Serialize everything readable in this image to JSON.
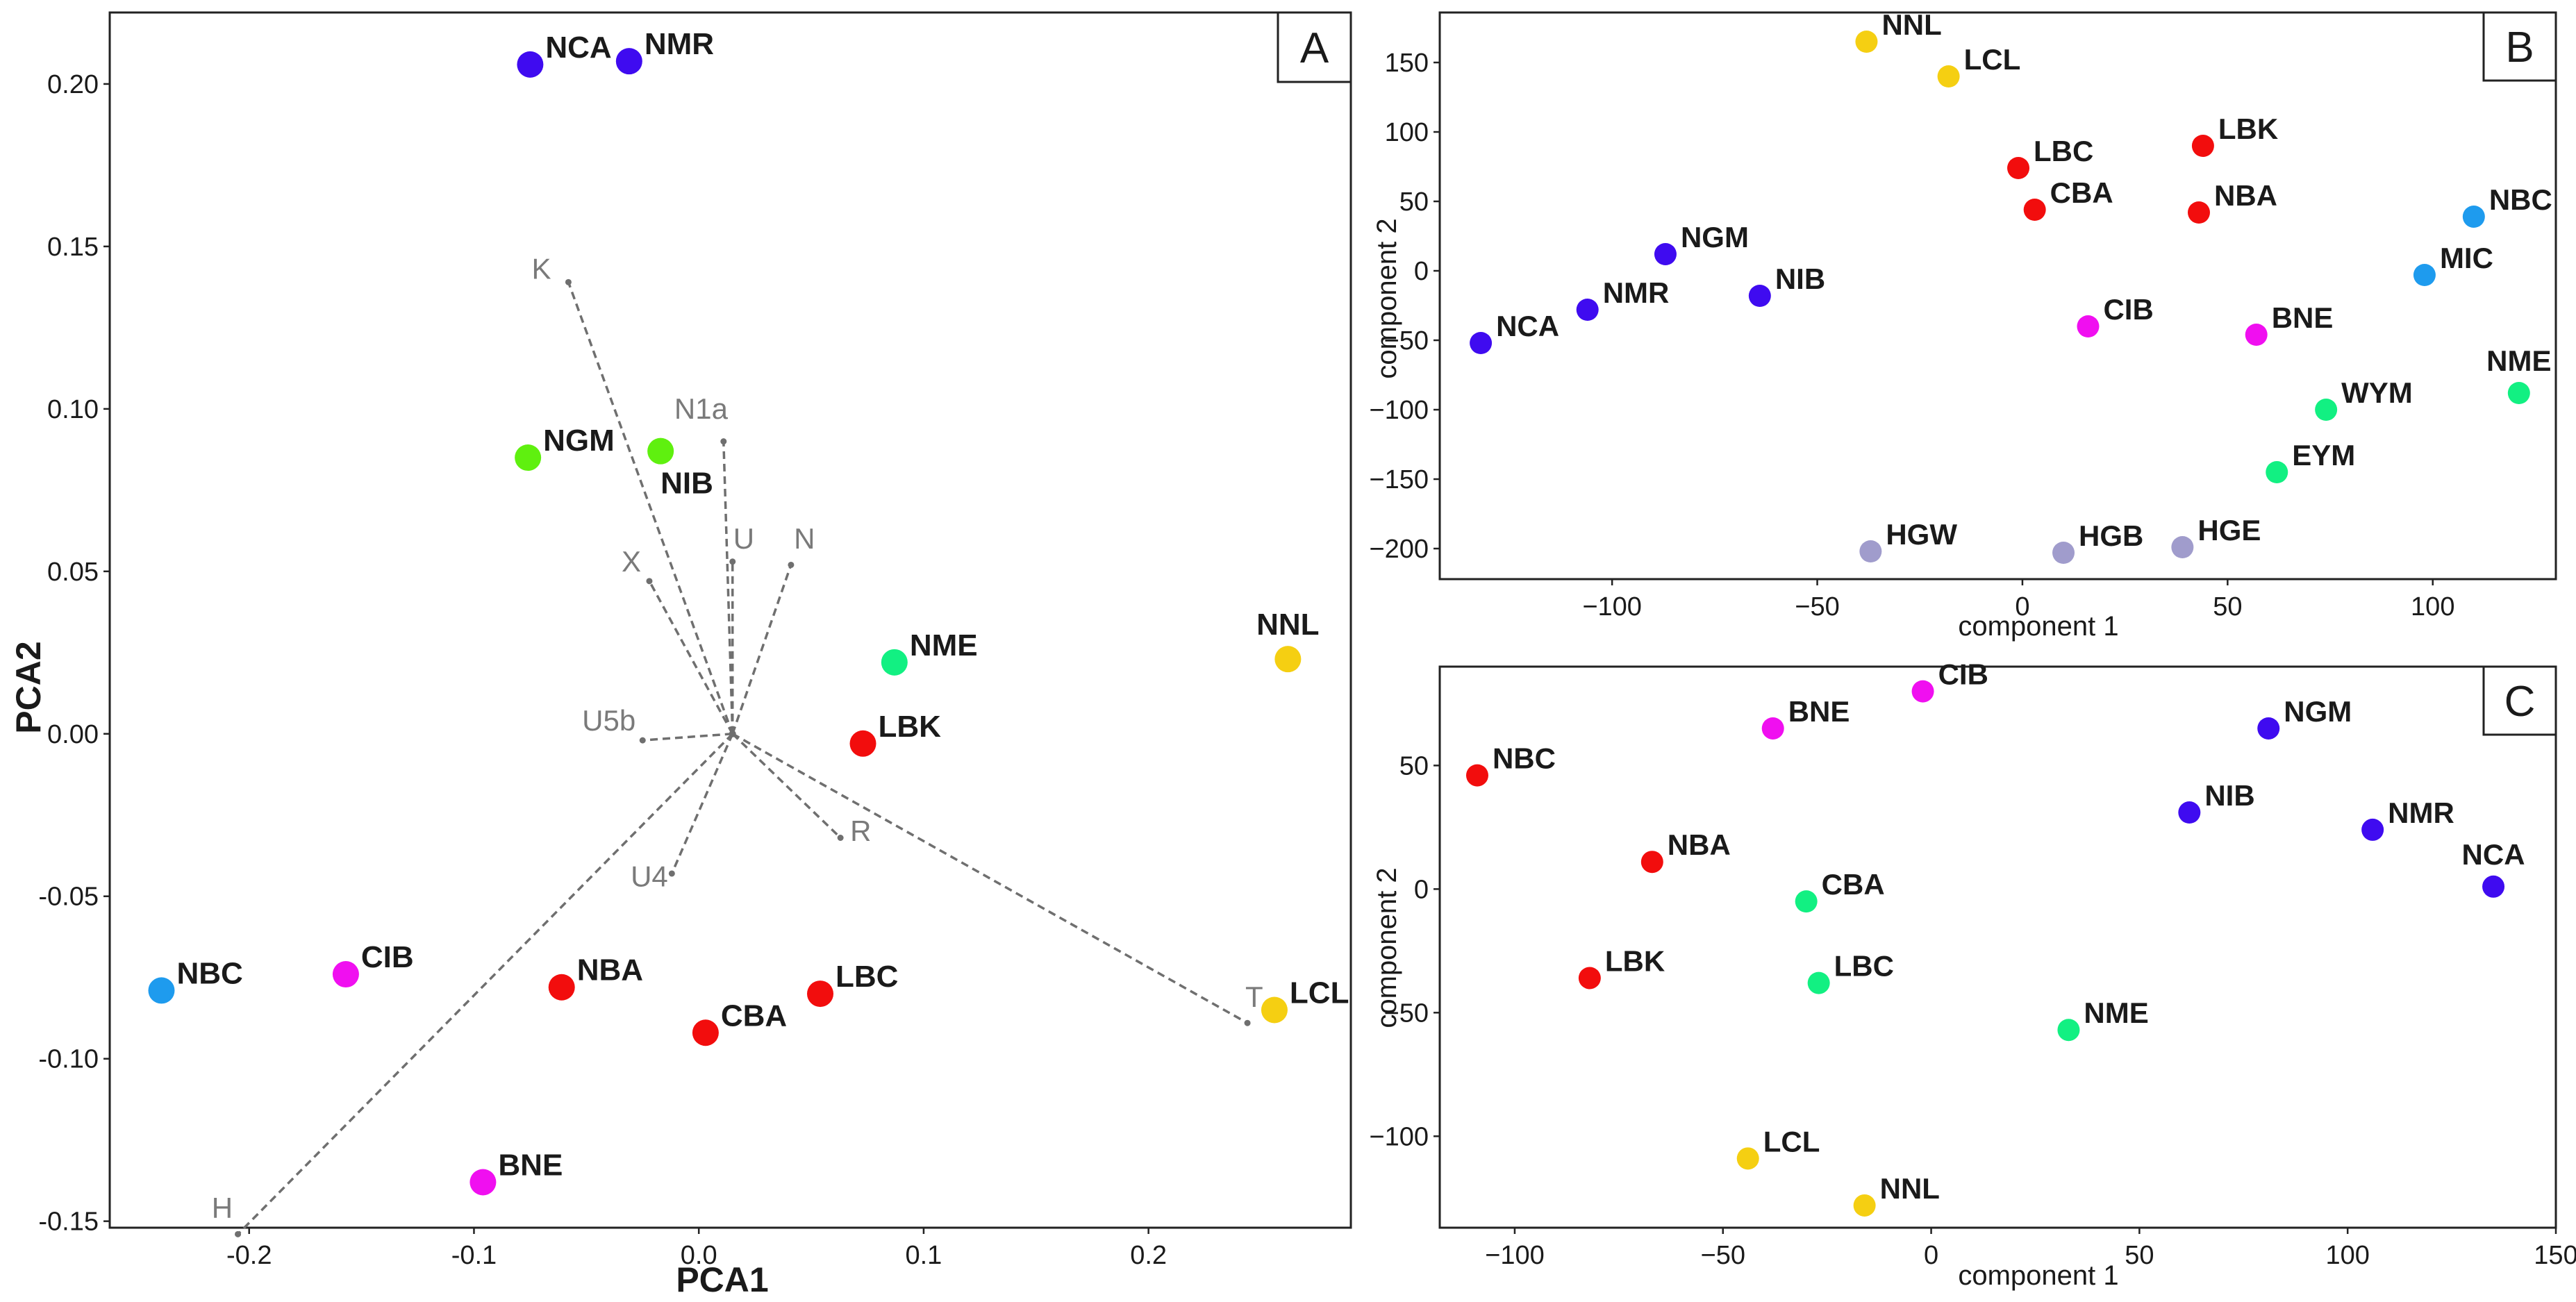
{
  "chart_data": [
    {
      "panel": "A",
      "type": "scatter",
      "subtype": "pca-biplot",
      "xlabel": "PCA1",
      "ylabel": "PCA2",
      "xlim": [
        -0.262,
        0.29
      ],
      "ylim": [
        -0.152,
        0.222
      ],
      "xticks": [
        -0.2,
        -0.1,
        0.0,
        0.1,
        0.2
      ],
      "xtick_labels": [
        "-0.2",
        "-0.1",
        "0.0",
        "0.1",
        "0.2"
      ],
      "yticks": [
        -0.15,
        -0.1,
        -0.05,
        0.0,
        0.05,
        0.1,
        0.15,
        0.2
      ],
      "ytick_labels": [
        "-0.15",
        "-0.10",
        "-0.05",
        "0.00",
        "0.05",
        "0.10",
        "0.15",
        "0.20"
      ],
      "vector_origin": [
        0.015,
        0.0
      ],
      "vectors": [
        {
          "label": "K",
          "x": -0.058,
          "y": 0.139,
          "lx": -0.07,
          "ly": 0.14
        },
        {
          "label": "N1a",
          "x": 0.011,
          "y": 0.09,
          "lx": 0.001,
          "ly": 0.097
        },
        {
          "label": "U",
          "x": 0.015,
          "y": 0.053,
          "lx": 0.02,
          "ly": 0.057
        },
        {
          "label": "N",
          "x": 0.041,
          "y": 0.052,
          "lx": 0.047,
          "ly": 0.057
        },
        {
          "label": "X",
          "x": -0.022,
          "y": 0.047,
          "lx": -0.03,
          "ly": 0.05
        },
        {
          "label": "U5b",
          "x": -0.025,
          "y": -0.002,
          "lx": -0.04,
          "ly": 0.001
        },
        {
          "label": "U4",
          "x": -0.012,
          "y": -0.043,
          "lx": -0.022,
          "ly": -0.047
        },
        {
          "label": "R",
          "x": 0.063,
          "y": -0.032,
          "lx": 0.072,
          "ly": -0.033
        },
        {
          "label": "T",
          "x": 0.244,
          "y": -0.089,
          "lx": 0.247,
          "ly": -0.084
        },
        {
          "label": "H",
          "x": -0.205,
          "y": -0.154,
          "lx": -0.212,
          "ly": -0.149
        }
      ],
      "points": [
        {
          "label": "NCA",
          "x": -0.075,
          "y": 0.206,
          "color": "#3f0bf0",
          "pos": "right"
        },
        {
          "label": "NMR",
          "x": -0.031,
          "y": 0.207,
          "color": "#3f0bf0",
          "pos": "right"
        },
        {
          "label": "NGM",
          "x": -0.076,
          "y": 0.085,
          "color": "#5ff00f",
          "pos": "right"
        },
        {
          "label": "NIB",
          "x": -0.017,
          "y": 0.087,
          "color": "#5ff00f",
          "pos": "below"
        },
        {
          "label": "NME",
          "x": 0.087,
          "y": 0.022,
          "color": "#12f082",
          "pos": "right"
        },
        {
          "label": "LBK",
          "x": 0.073,
          "y": -0.003,
          "color": "#f20d0d",
          "pos": "right"
        },
        {
          "label": "NNL",
          "x": 0.262,
          "y": 0.023,
          "color": "#f5cf12",
          "pos": "above"
        },
        {
          "label": "LCL",
          "x": 0.256,
          "y": -0.085,
          "color": "#f5cf12",
          "pos": "right"
        },
        {
          "label": "NBC",
          "x": -0.239,
          "y": -0.079,
          "color": "#1e9bee",
          "pos": "right"
        },
        {
          "label": "CIB",
          "x": -0.157,
          "y": -0.074,
          "color": "#f00ff0",
          "pos": "right"
        },
        {
          "label": "NBA",
          "x": -0.061,
          "y": -0.078,
          "color": "#f20d0d",
          "pos": "right"
        },
        {
          "label": "LBC",
          "x": 0.054,
          "y": -0.08,
          "color": "#f20d0d",
          "pos": "right"
        },
        {
          "label": "CBA",
          "x": 0.003,
          "y": -0.092,
          "color": "#f20d0d",
          "pos": "right"
        },
        {
          "label": "BNE",
          "x": -0.096,
          "y": -0.138,
          "color": "#f00ff0",
          "pos": "right"
        }
      ]
    },
    {
      "panel": "B",
      "type": "scatter",
      "xlabel": "component 1",
      "ylabel": "component 2",
      "xlim": [
        -142,
        130
      ],
      "ylim": [
        -222,
        186
      ],
      "xticks": [
        -100,
        -50,
        0,
        50,
        100
      ],
      "xtick_labels": [
        "−100",
        "−50",
        "0",
        "50",
        "100"
      ],
      "yticks": [
        -200,
        -150,
        -100,
        -50,
        0,
        50,
        100,
        150
      ],
      "ytick_labels": [
        "−200",
        "−150",
        "−100",
        "−50",
        "0",
        "50",
        "100",
        "150"
      ],
      "points": [
        {
          "label": "NNL",
          "x": -38,
          "y": 165,
          "color": "#f5cf12",
          "pos": "right"
        },
        {
          "label": "LCL",
          "x": -18,
          "y": 140,
          "color": "#f5cf12",
          "pos": "right"
        },
        {
          "label": "LBC",
          "x": -1,
          "y": 74,
          "color": "#f20d0d",
          "pos": "right"
        },
        {
          "label": "LBK",
          "x": 44,
          "y": 90,
          "color": "#f20d0d",
          "pos": "right"
        },
        {
          "label": "CBA",
          "x": 3,
          "y": 44,
          "color": "#f20d0d",
          "pos": "right"
        },
        {
          "label": "NBA",
          "x": 43,
          "y": 42,
          "color": "#f20d0d",
          "pos": "right"
        },
        {
          "label": "NBC",
          "x": 110,
          "y": 39,
          "color": "#1e9bee",
          "pos": "right"
        },
        {
          "label": "MIC",
          "x": 98,
          "y": -3,
          "color": "#1e9bee",
          "pos": "right"
        },
        {
          "label": "NGM",
          "x": -87,
          "y": 12,
          "color": "#3f0bf0",
          "pos": "right"
        },
        {
          "label": "NIB",
          "x": -64,
          "y": -18,
          "color": "#3f0bf0",
          "pos": "right"
        },
        {
          "label": "NMR",
          "x": -106,
          "y": -28,
          "color": "#3f0bf0",
          "pos": "right"
        },
        {
          "label": "NCA",
          "x": -132,
          "y": -52,
          "color": "#3f0bf0",
          "pos": "right"
        },
        {
          "label": "CIB",
          "x": 16,
          "y": -40,
          "color": "#f00ff0",
          "pos": "right"
        },
        {
          "label": "BNE",
          "x": 57,
          "y": -46,
          "color": "#f00ff0",
          "pos": "right"
        },
        {
          "label": "NME",
          "x": 121,
          "y": -88,
          "color": "#12f082",
          "pos": "above"
        },
        {
          "label": "WYM",
          "x": 74,
          "y": -100,
          "color": "#12f082",
          "pos": "right"
        },
        {
          "label": "EYM",
          "x": 62,
          "y": -145,
          "color": "#12f082",
          "pos": "right"
        },
        {
          "label": "HGW",
          "x": -37,
          "y": -202,
          "color": "#a09ccc",
          "pos": "right"
        },
        {
          "label": "HGB",
          "x": 10,
          "y": -203,
          "color": "#a09ccc",
          "pos": "right"
        },
        {
          "label": "HGE",
          "x": 39,
          "y": -199,
          "color": "#a09ccc",
          "pos": "right"
        }
      ]
    },
    {
      "panel": "C",
      "type": "scatter",
      "xlabel": "component 1",
      "ylabel": "component 2",
      "xlim": [
        -118,
        150
      ],
      "ylim": [
        -137,
        90
      ],
      "xticks": [
        -100,
        -50,
        0,
        50,
        100,
        150
      ],
      "xtick_labels": [
        "−100",
        "−50",
        "0",
        "50",
        "100",
        "150"
      ],
      "yticks": [
        -100,
        -50,
        0,
        50
      ],
      "ytick_labels": [
        "−100",
        "−50",
        "0",
        "50"
      ],
      "points": [
        {
          "label": "CIB",
          "x": -2,
          "y": 80,
          "color": "#f00ff0",
          "pos": "right"
        },
        {
          "label": "BNE",
          "x": -38,
          "y": 65,
          "color": "#f00ff0",
          "pos": "right"
        },
        {
          "label": "NBC",
          "x": -109,
          "y": 46,
          "color": "#f20d0d",
          "pos": "right"
        },
        {
          "label": "NGM",
          "x": 81,
          "y": 65,
          "color": "#3f0bf0",
          "pos": "right"
        },
        {
          "label": "NIB",
          "x": 62,
          "y": 31,
          "color": "#3f0bf0",
          "pos": "right"
        },
        {
          "label": "NMR",
          "x": 106,
          "y": 24,
          "color": "#3f0bf0",
          "pos": "right"
        },
        {
          "label": "NCA",
          "x": 135,
          "y": 1,
          "color": "#3f0bf0",
          "pos": "above"
        },
        {
          "label": "NBA",
          "x": -67,
          "y": 11,
          "color": "#f20d0d",
          "pos": "right"
        },
        {
          "label": "CBA",
          "x": -30,
          "y": -5,
          "color": "#12f082",
          "pos": "right"
        },
        {
          "label": "LBK",
          "x": -82,
          "y": -36,
          "color": "#f20d0d",
          "pos": "right"
        },
        {
          "label": "LBC",
          "x": -27,
          "y": -38,
          "color": "#12f082",
          "pos": "right"
        },
        {
          "label": "NME",
          "x": 33,
          "y": -57,
          "color": "#12f082",
          "pos": "right"
        },
        {
          "label": "LCL",
          "x": -44,
          "y": -109,
          "color": "#f5cf12",
          "pos": "right"
        },
        {
          "label": "NNL",
          "x": -16,
          "y": -128,
          "color": "#f5cf12",
          "pos": "right"
        }
      ]
    }
  ]
}
